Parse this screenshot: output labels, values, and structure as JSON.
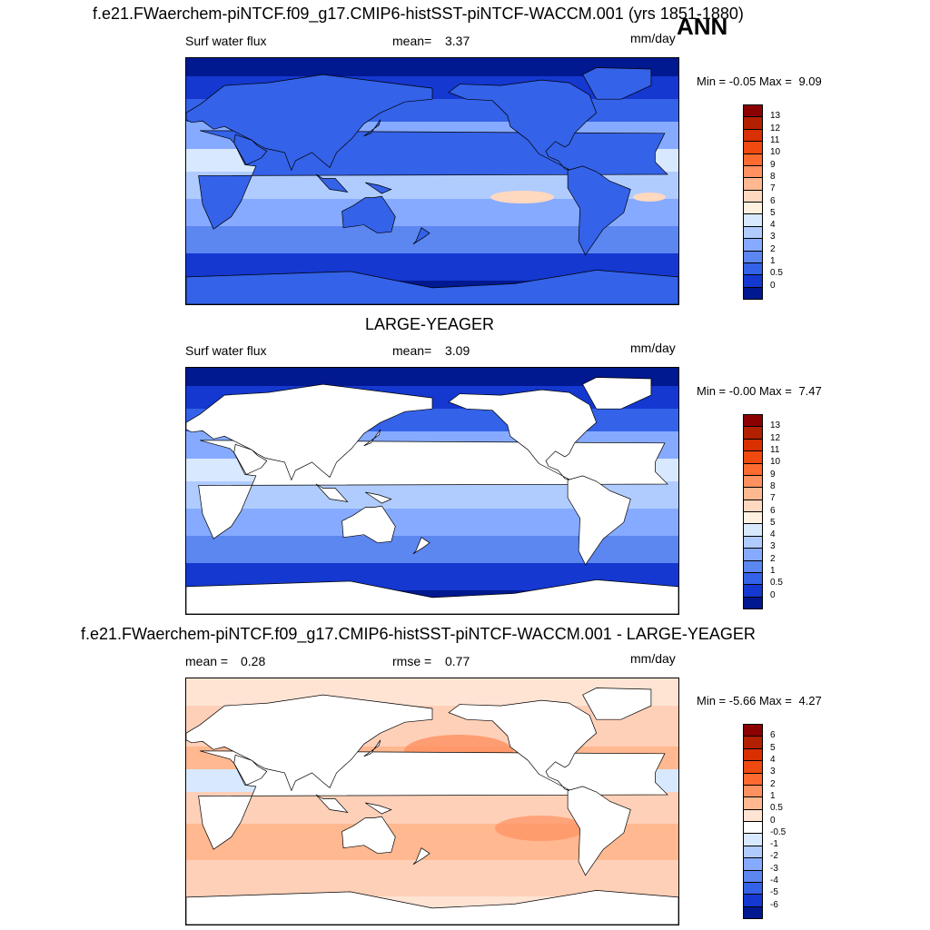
{
  "season": "ANN",
  "panels": [
    {
      "title": "f.e21.FWaerchem-piNTCF.f09_g17.CMIP6-histSST-piNTCF-WACCM.001 (yrs 1851-1880)",
      "left_label": "Surf water flux",
      "mid_label": "mean=",
      "mid_value": "3.37",
      "units": "mm/day",
      "min_label": "Min =",
      "min_value": "-0.05",
      "max_label": "Max =",
      "max_value": "9.09",
      "field_mode": "model",
      "colorbar": {
        "labels": [
          "13",
          "12",
          "11",
          "10",
          "9",
          "8",
          "7",
          "6",
          "5",
          "4",
          "3",
          "2",
          "1",
          "0.5",
          "0"
        ],
        "colors": [
          "#8b0000",
          "#b22000",
          "#d83000",
          "#f04a10",
          "#ff6a30",
          "#ff9060",
          "#ffb890",
          "#ffd8c0",
          "#fff0e0",
          "#d8e8ff",
          "#b0ccff",
          "#86aaff",
          "#5c86f0",
          "#3462e8",
          "#1438d0",
          "#001890"
        ]
      }
    },
    {
      "title": "LARGE-YEAGER",
      "left_label": "Surf water flux",
      "mid_label": "mean=",
      "mid_value": "3.09",
      "units": "mm/day",
      "min_label": "Min =",
      "min_value": "-0.00",
      "max_label": "Max =",
      "max_value": "7.47",
      "field_mode": "obs",
      "colorbar": {
        "labels": [
          "13",
          "12",
          "11",
          "10",
          "9",
          "8",
          "7",
          "6",
          "5",
          "4",
          "3",
          "2",
          "1",
          "0.5",
          "0"
        ],
        "colors": [
          "#8b0000",
          "#b22000",
          "#d83000",
          "#f04a10",
          "#ff6a30",
          "#ff9060",
          "#ffb890",
          "#ffd8c0",
          "#fff0e0",
          "#d8e8ff",
          "#b0ccff",
          "#86aaff",
          "#5c86f0",
          "#3462e8",
          "#1438d0",
          "#001890"
        ]
      }
    },
    {
      "title": "f.e21.FWaerchem-piNTCF.f09_g17.CMIP6-histSST-piNTCF-WACCM.001 - LARGE-YEAGER",
      "left_label": "mean =",
      "left_value": "0.28",
      "mid_label": "rmse =",
      "mid_value": "0.77",
      "units": "mm/day",
      "min_label": "Min =",
      "min_value": "-5.66",
      "max_label": "Max =",
      "max_value": "4.27",
      "field_mode": "diff",
      "colorbar": {
        "labels": [
          "6",
          "5",
          "4",
          "3",
          "2",
          "1",
          "0.5",
          "0",
          "-0.5",
          "-1",
          "-2",
          "-3",
          "-4",
          "-5",
          "-6"
        ],
        "colors": [
          "#8b0000",
          "#b22000",
          "#d83000",
          "#f04a10",
          "#ff6a30",
          "#ff9060",
          "#ffb890",
          "#ffe4d4",
          "#ffffff",
          "#d8e8ff",
          "#b0ccff",
          "#86aaff",
          "#5c86f0",
          "#3462e8",
          "#1438d0",
          "#001890"
        ]
      }
    }
  ]
}
